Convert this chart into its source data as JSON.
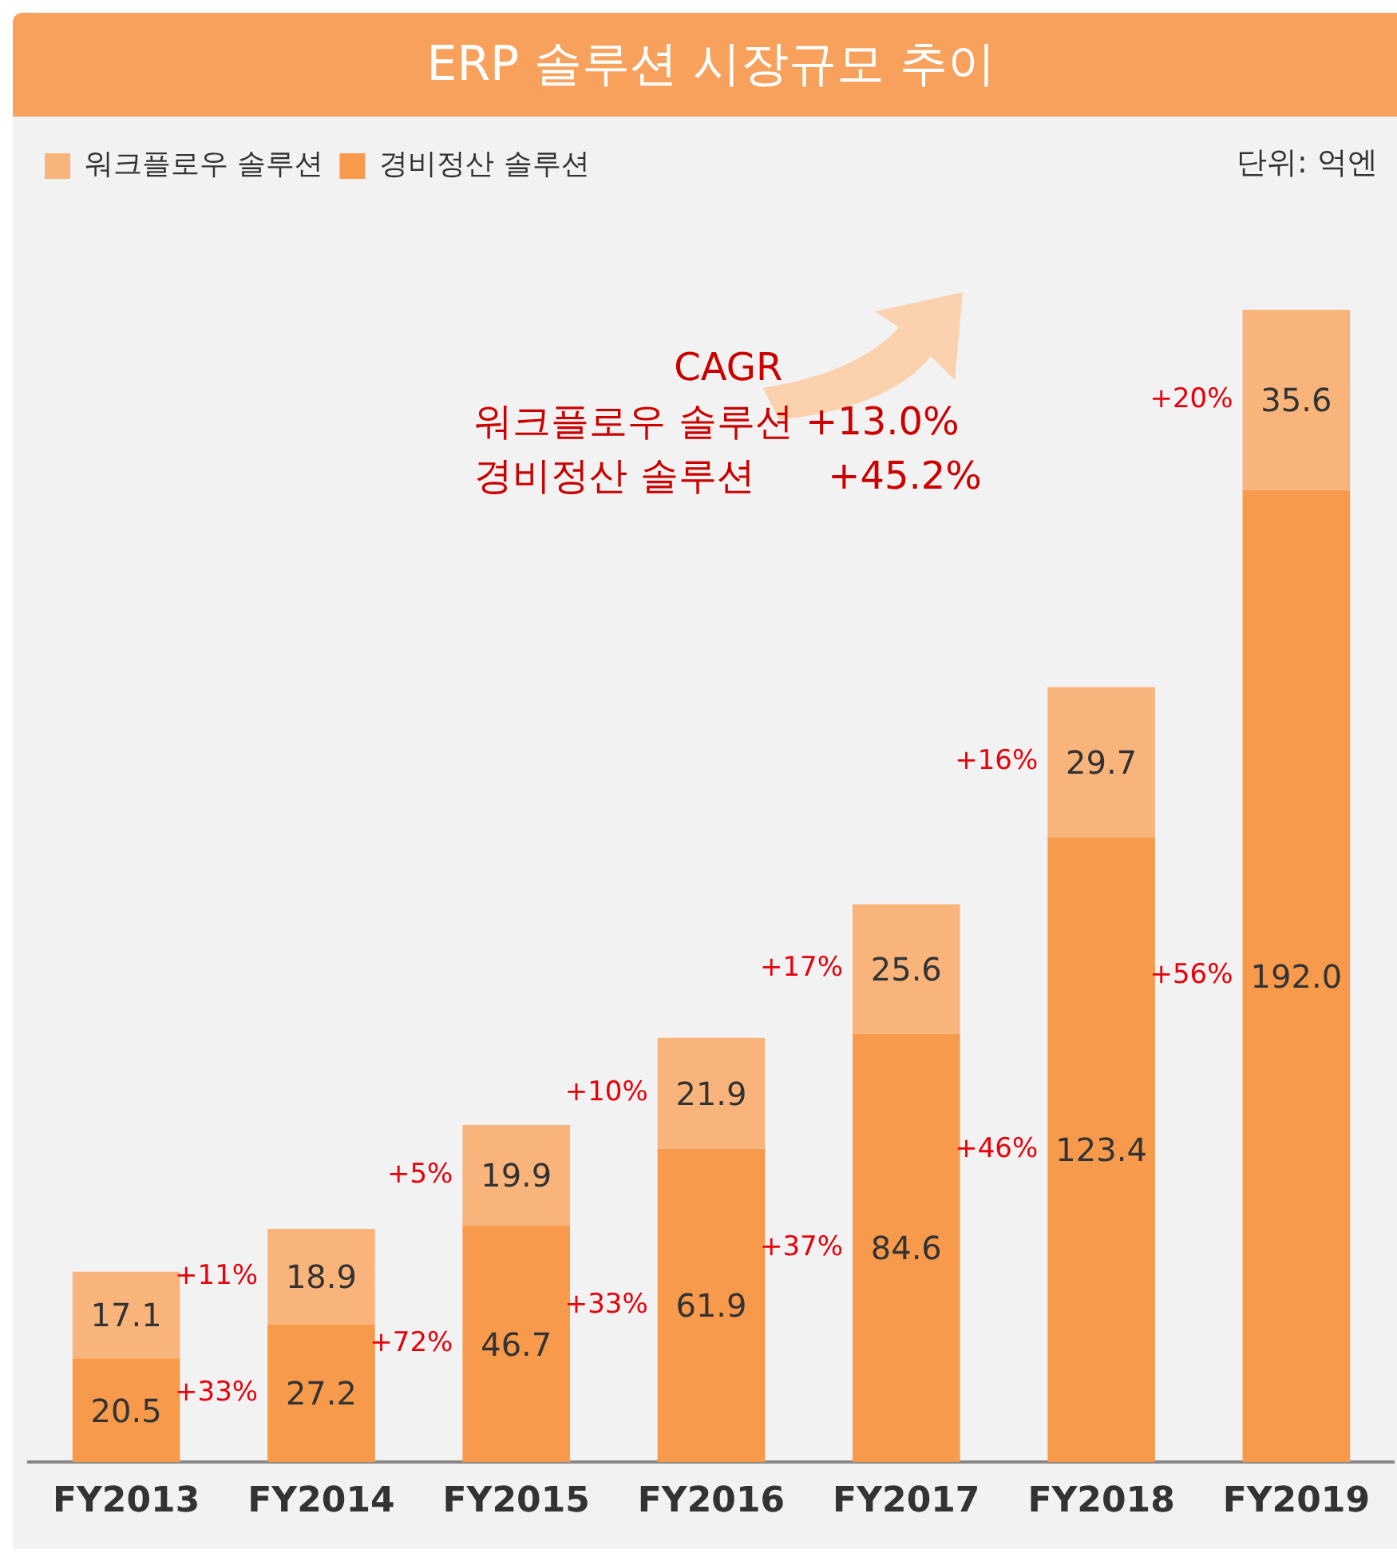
{
  "chart_data": {
    "type": "bar",
    "title": "ERP 솔루션 시장규모 추이",
    "stacked": true,
    "legend": "top left",
    "grid": false,
    "categories": [
      "FY2013",
      "FY2014",
      "FY2015",
      "FY2016",
      "FY2017",
      "FY2018",
      "FY2019"
    ],
    "series": [
      {
        "name": "경비정산 솔루션",
        "color": "#f79a4c",
        "values": [
          20.5,
          27.2,
          46.7,
          61.9,
          84.6,
          123.4,
          192.0
        ],
        "value_labels": [
          "20.5",
          "27.2",
          "46.7",
          "61.9",
          "84.6",
          "123.4",
          "192.0"
        ]
      },
      {
        "name": "워크플로우 솔루션",
        "color": "#f9b47c",
        "values": [
          17.1,
          18.9,
          19.9,
          21.9,
          25.6,
          29.7,
          35.6
        ],
        "value_labels": [
          "17.1",
          "18.9",
          "19.9",
          "21.9",
          "25.6",
          "29.7",
          "35.6"
        ]
      }
    ],
    "annotations": [
      "단위: 억엔",
      "CAGR",
      "워크플로우 솔루션 +13.0%",
      "경비정산 솔루션      +45.2%",
      "+11%",
      "+33%",
      "+5%",
      "+72%",
      "+10%",
      "+33%",
      "+17%",
      "+37%",
      "+16%",
      "+46%",
      "+20%",
      "+56%"
    ]
  }
}
